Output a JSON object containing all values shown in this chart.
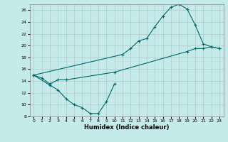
{
  "xlabel": "Humidex (Indice chaleur)",
  "bg_color": "#c5eaea",
  "line_color": "#006666",
  "grid_color": "#b0c8c8",
  "xlim": [
    -0.5,
    23.5
  ],
  "ylim": [
    8,
    27
  ],
  "xticks": [
    0,
    1,
    2,
    3,
    4,
    5,
    6,
    7,
    8,
    9,
    10,
    11,
    12,
    13,
    14,
    15,
    16,
    17,
    18,
    19,
    20,
    21,
    22,
    23
  ],
  "yticks": [
    8,
    10,
    12,
    14,
    16,
    18,
    20,
    22,
    24,
    26
  ],
  "series": [
    {
      "x": [
        0,
        1,
        2,
        3,
        4,
        10,
        19,
        20,
        21,
        22,
        23
      ],
      "y": [
        15,
        14.5,
        13.5,
        14.2,
        14.2,
        15.5,
        19.0,
        19.5,
        19.5,
        19.8,
        19.5
      ]
    },
    {
      "x": [
        0,
        2,
        3,
        4,
        5,
        6,
        7,
        8,
        9,
        10
      ],
      "y": [
        15,
        13.3,
        12.5,
        11.0,
        10.0,
        9.5,
        8.5,
        8.5,
        10.5,
        13.5
      ]
    },
    {
      "x": [
        0,
        11,
        12,
        13,
        14,
        15,
        16,
        17,
        18,
        19,
        20,
        21,
        22,
        23
      ],
      "y": [
        15,
        18.5,
        19.5,
        20.8,
        21.2,
        23.2,
        25.0,
        26.5,
        27.0,
        26.2,
        23.5,
        20.3,
        19.8,
        19.5
      ]
    }
  ]
}
